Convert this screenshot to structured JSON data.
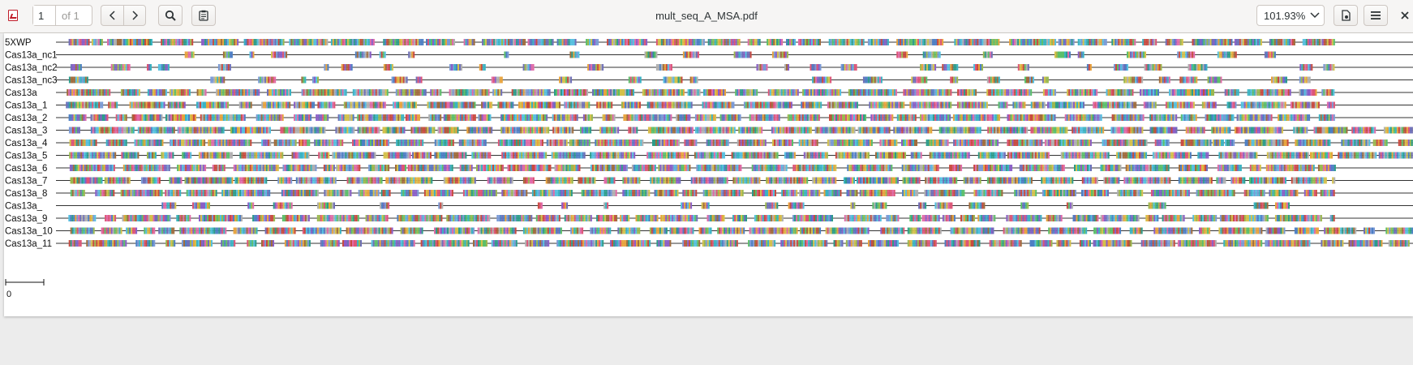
{
  "app": {
    "title": "mult_seq_A_MSA.pdf"
  },
  "toolbar": {
    "page_number": "1",
    "page_of": "of 1",
    "zoom": "101.93%",
    "icons": {
      "app": "pdf-icon",
      "prev": "chevron-left-icon",
      "next": "chevron-right-icon",
      "search": "search-icon",
      "annotations": "clipboard-icon",
      "document_properties": "document-icon",
      "menu": "hamburger-menu-icon",
      "close": "close-icon"
    }
  },
  "alignment": {
    "sequences": [
      "5XWP",
      "Cas13a_nc1",
      "Cas13a_nc2",
      "Cas13a_nc3",
      "Cas13a",
      "Cas13a_1",
      "Cas13a_2",
      "Cas13a_3",
      "Cas13a_4",
      "Cas13a_5",
      "Cas13a_6",
      "Cas13a_7",
      "Cas13a_8",
      "Cas13a_",
      "Cas13a_9",
      "Cas13a_10",
      "Cas13a_11"
    ],
    "scale_label": "0",
    "residue_colors": [
      "#4d7fc4",
      "#e06aa8",
      "#5bbf6a",
      "#8a5ec7",
      "#e8a33c",
      "#3ab3c2",
      "#c94a3f",
      "#9bb84e",
      "#6f6fb8",
      "#2c9c8a",
      "#d4c14a",
      "#b0b0b0",
      "#7a9ad6",
      "#a06c3c",
      "#55c0e0",
      "#dd5577"
    ]
  }
}
